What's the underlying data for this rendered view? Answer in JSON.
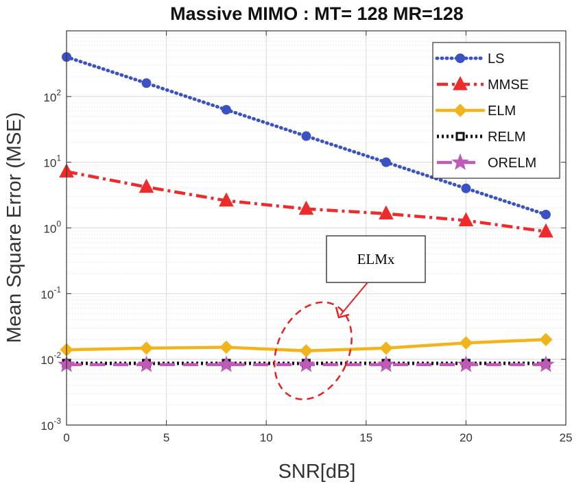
{
  "chart_data": {
    "type": "line",
    "title": "Massive MIMO : MT= 128  MR=128",
    "xlabel": "SNR[dB]",
    "ylabel": "Mean Square Error (MSE)",
    "x": [
      0,
      4,
      8,
      12,
      16,
      20,
      24
    ],
    "xlim": [
      0,
      25
    ],
    "ylim": [
      0.001,
      1000
    ],
    "yscale": "log",
    "grid": true,
    "xticks": [
      0,
      5,
      10,
      15,
      20,
      25
    ],
    "xtick_labels": [
      "0",
      "5",
      "10",
      "15",
      "20",
      "25"
    ],
    "yticks": [
      0.001,
      0.01,
      0.1,
      1,
      10,
      100
    ],
    "ytick_labels": [
      {
        "base": "10",
        "exp": "-3"
      },
      {
        "base": "10",
        "exp": "-2"
      },
      {
        "base": "10",
        "exp": "-1"
      },
      {
        "base": "10",
        "exp": "0"
      },
      {
        "base": "10",
        "exp": "1"
      },
      {
        "base": "10",
        "exp": "2"
      }
    ],
    "legend_position": "top-right",
    "series": [
      {
        "name": "LS",
        "color": "#3a52c4",
        "dash": "dotted",
        "marker": "circle",
        "values": [
          400,
          160,
          63,
          25,
          10,
          4,
          1.6
        ]
      },
      {
        "name": "MMSE",
        "color": "#ee2a2a",
        "dash": "dashdot",
        "marker": "triangle",
        "values": [
          7.2,
          4.2,
          2.6,
          1.95,
          1.65,
          1.3,
          0.88
        ]
      },
      {
        "name": "ELM",
        "color": "#f2b41c",
        "dash": "solid",
        "marker": "diamond",
        "values": [
          0.014,
          0.0148,
          0.0153,
          0.0135,
          0.0148,
          0.0178,
          0.02
        ]
      },
      {
        "name": "RELM",
        "color": "#111111",
        "dash": "dotted-heavy",
        "marker": "square",
        "values": [
          0.0087,
          0.0087,
          0.0087,
          0.0087,
          0.0087,
          0.0087,
          0.0087
        ]
      },
      {
        "name": "ORELM",
        "color": "#c05ab8",
        "dash": "dashed",
        "marker": "star",
        "values": [
          0.0083,
          0.0083,
          0.0083,
          0.0083,
          0.0083,
          0.0083,
          0.0083
        ]
      }
    ],
    "annotations": [
      {
        "text": "ELMx",
        "points_to_x": 12,
        "points_to_y": 0.0135
      }
    ]
  }
}
